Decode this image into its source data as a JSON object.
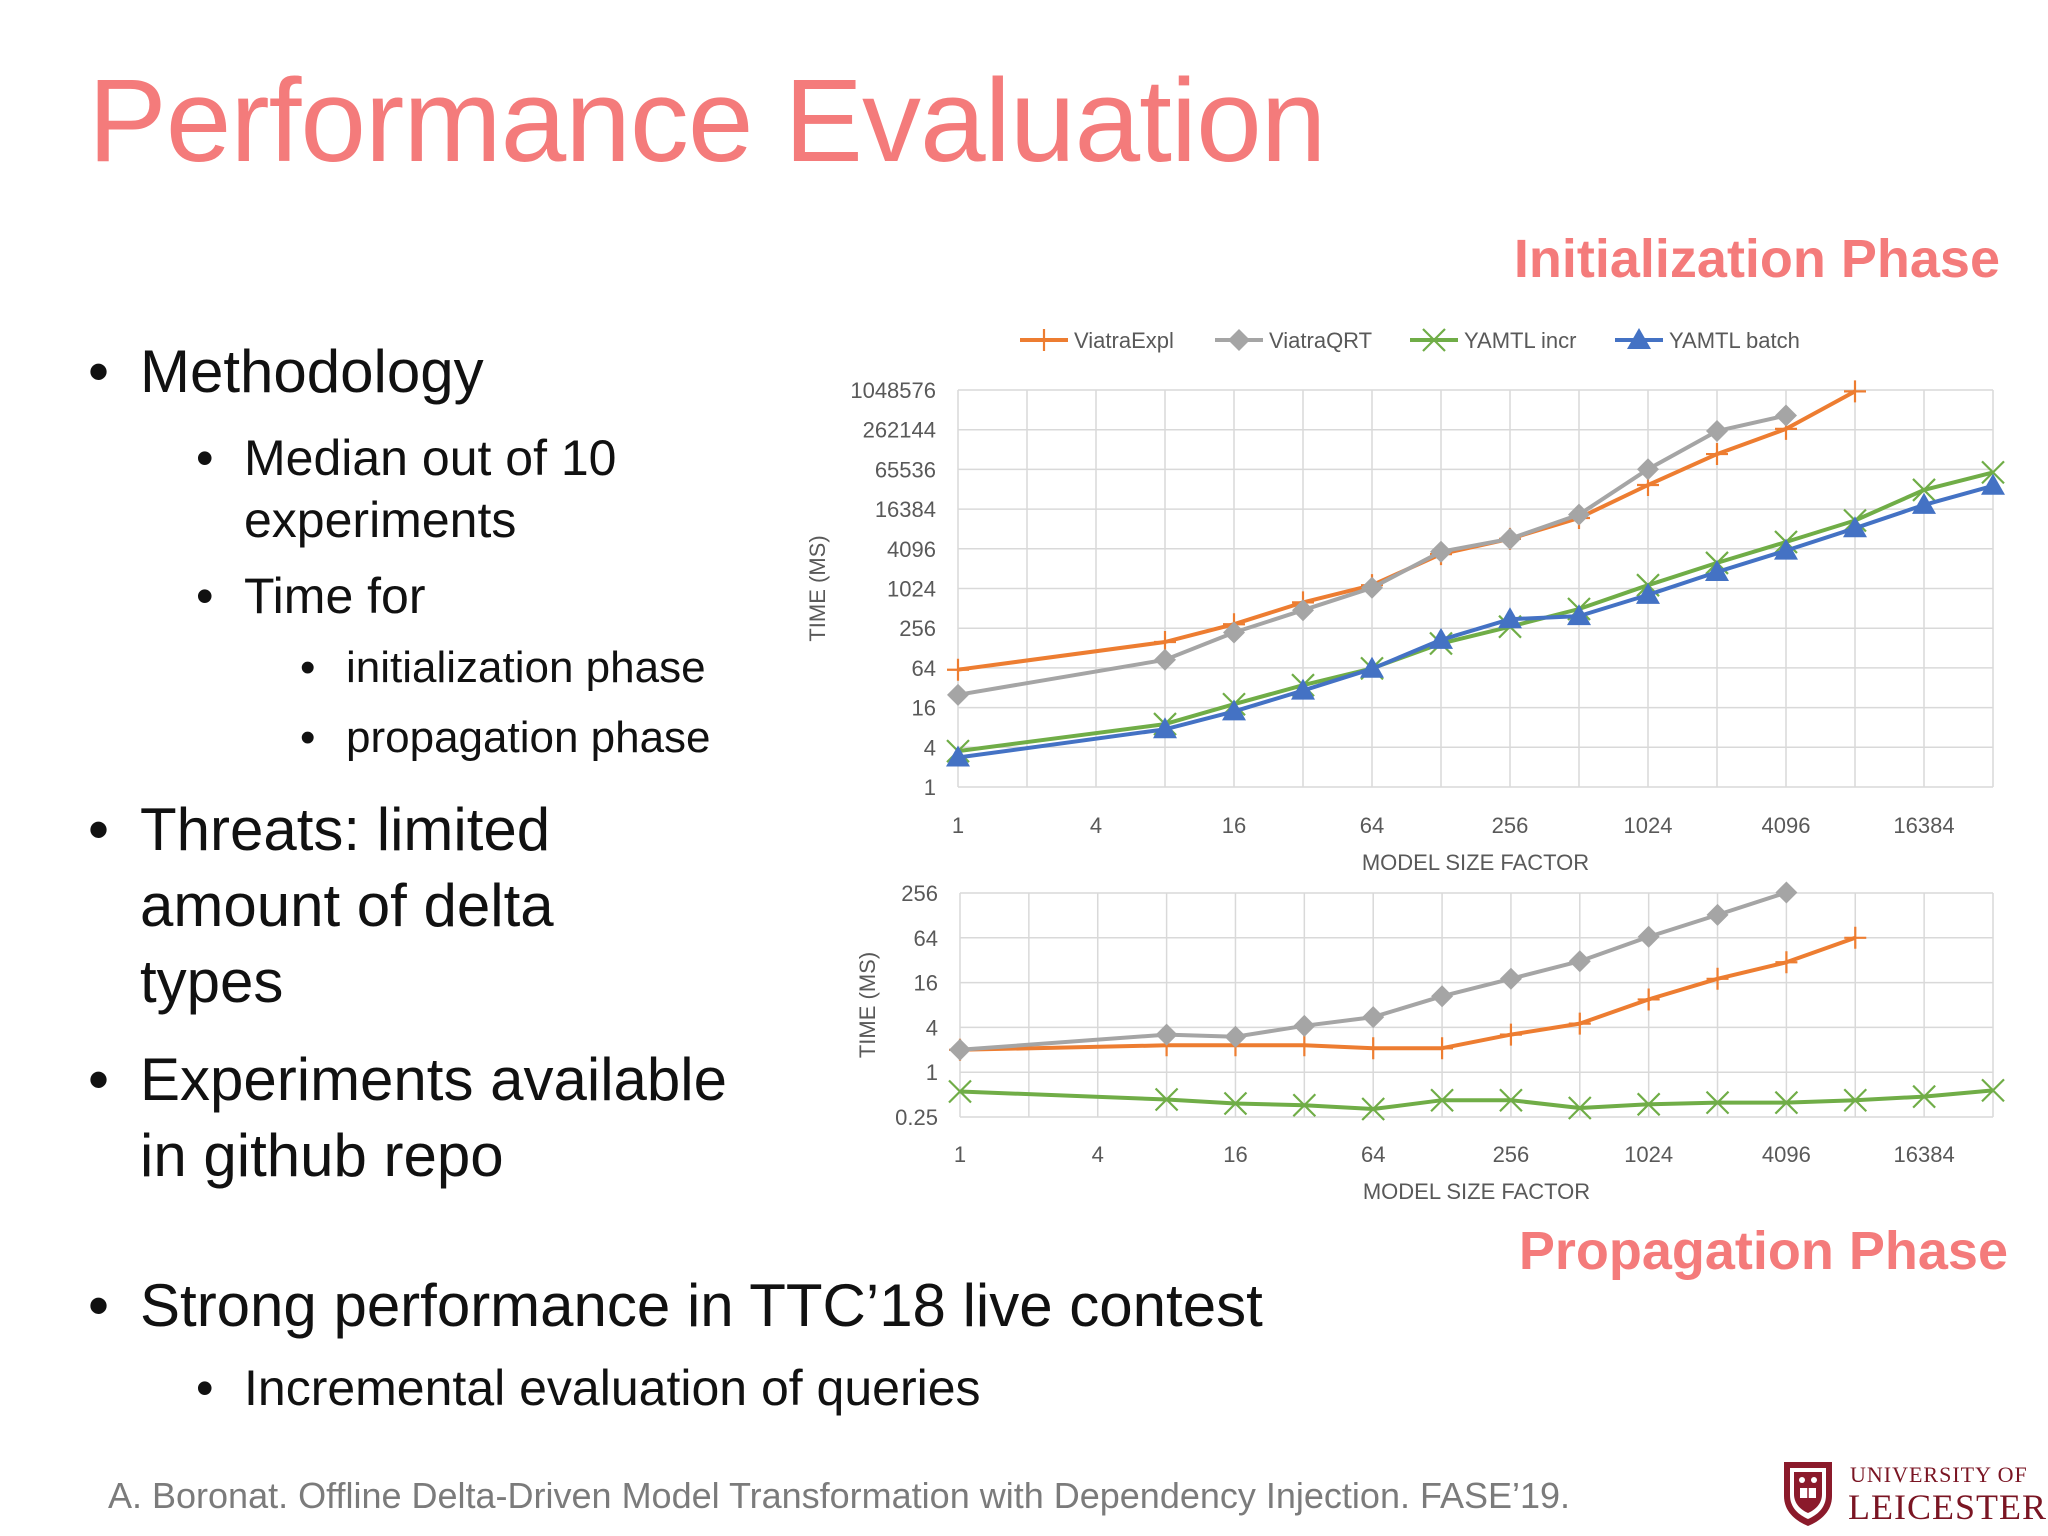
{
  "slide": {
    "title": "Performance Evaluation",
    "phase_init": "Initialization Phase",
    "phase_prop": "Propagation Phase",
    "bullets": {
      "methodology": "Methodology",
      "median1": "Median out of 10",
      "median2": "experiments",
      "time_for": "Time for",
      "init_phase": "initialization phase",
      "prop_phase": "propagation phase",
      "threats1": "Threats: limited",
      "threats2": "amount of delta",
      "threats3": "types",
      "exp1": "Experiments available",
      "exp2": "in github repo",
      "strong": "Strong performance in TTC’18 live contest",
      "incremental": "Incremental evaluation of queries"
    },
    "footer": "A. Boronat. Offline Delta-Driven Model Transformation with Dependency Injection. FASE’19.",
    "logo_top": "UNIVERSITY OF",
    "logo_bottom": "LEICESTER"
  },
  "chart_data": [
    {
      "type": "line",
      "ylabel": "TIME (MS)",
      "xlabel": "MODEL SIZE FACTOR",
      "x_scale": "log2",
      "y_scale": "log2",
      "xlim": [
        1,
        32768
      ],
      "ylim": [
        1,
        1048576
      ],
      "x_ticks": [
        "1",
        "4",
        "16",
        "64",
        "256",
        "1024",
        "4096",
        "16384"
      ],
      "y_ticks": [
        "1",
        "4",
        "16",
        "64",
        "256",
        "1024",
        "4096",
        "16384",
        "65536",
        "262144",
        "1048576"
      ],
      "grid": true,
      "legend": "top",
      "series": [
        {
          "name": "ViatraExpl",
          "color": "#ed7d31",
          "marker": "plus",
          "x": [
            1,
            8,
            16,
            32,
            64,
            128,
            256,
            512,
            1024,
            2048,
            4096,
            8192
          ],
          "y": [
            60,
            158,
            294,
            630,
            1150,
            3400,
            5800,
            12000,
            38000,
            112000,
            270000,
            1000000
          ]
        },
        {
          "name": "ViatraQRT",
          "color": "#a5a5a5",
          "marker": "diamond",
          "x": [
            1,
            8,
            16,
            32,
            64,
            128,
            256,
            512,
            1024,
            2048,
            4096
          ],
          "y": [
            25,
            85,
            220,
            480,
            1050,
            3700,
            5800,
            13500,
            66000,
            250000,
            430000
          ]
        },
        {
          "name": "YAMTL incr",
          "color": "#70ad47",
          "marker": "x",
          "x": [
            1,
            8,
            16,
            32,
            64,
            128,
            256,
            512,
            1024,
            2048,
            4096,
            8192,
            16384,
            32768
          ],
          "y": [
            3.5,
            9,
            18,
            35,
            63,
            150,
            270,
            500,
            1150,
            2500,
            5200,
            11000,
            32000,
            59000
          ]
        },
        {
          "name": "YAMTL batch",
          "color": "#4472c4",
          "marker": "triangle",
          "x": [
            1,
            8,
            16,
            32,
            64,
            128,
            256,
            512,
            1024,
            2048,
            4096,
            8192,
            16384,
            32768
          ],
          "y": [
            2.8,
            7.5,
            14,
            29,
            62,
            170,
            350,
            390,
            820,
            1820,
            3850,
            8400,
            19000,
            37000
          ]
        }
      ]
    },
    {
      "type": "line",
      "ylabel": "TIME (MS)",
      "xlabel": "MODEL SIZE FACTOR",
      "x_scale": "log2",
      "y_scale": "log2",
      "xlim": [
        1,
        32768
      ],
      "ylim": [
        0.25,
        256
      ],
      "x_ticks": [
        "1",
        "4",
        "16",
        "64",
        "256",
        "1024",
        "4096",
        "16384"
      ],
      "y_ticks": [
        "0.25",
        "1",
        "4",
        "16",
        "64",
        "256"
      ],
      "grid": true,
      "legend": "none",
      "series": [
        {
          "name": "ViatraExpl",
          "color": "#ed7d31",
          "marker": "plus",
          "x": [
            1,
            8,
            16,
            32,
            64,
            128,
            256,
            512,
            1024,
            2048,
            4096,
            8192
          ],
          "y": [
            2,
            2.3,
            2.3,
            2.3,
            2.1,
            2.1,
            3.2,
            4.5,
            9.5,
            18,
            30,
            64
          ]
        },
        {
          "name": "ViatraQRT",
          "color": "#a5a5a5",
          "marker": "diamond",
          "x": [
            1,
            8,
            16,
            32,
            64,
            128,
            256,
            512,
            1024,
            2048,
            4096
          ],
          "y": [
            2,
            3.2,
            3,
            4.2,
            5.5,
            10.5,
            18,
            31,
            66,
            130,
            260
          ]
        },
        {
          "name": "YAMTL incr",
          "color": "#70ad47",
          "marker": "x",
          "x": [
            1,
            8,
            16,
            32,
            64,
            128,
            256,
            512,
            1024,
            2048,
            4096,
            8192,
            16384,
            32768
          ],
          "y": [
            0.55,
            0.43,
            0.38,
            0.36,
            0.32,
            0.42,
            0.42,
            0.33,
            0.37,
            0.39,
            0.39,
            0.42,
            0.47,
            0.57
          ]
        }
      ]
    }
  ]
}
